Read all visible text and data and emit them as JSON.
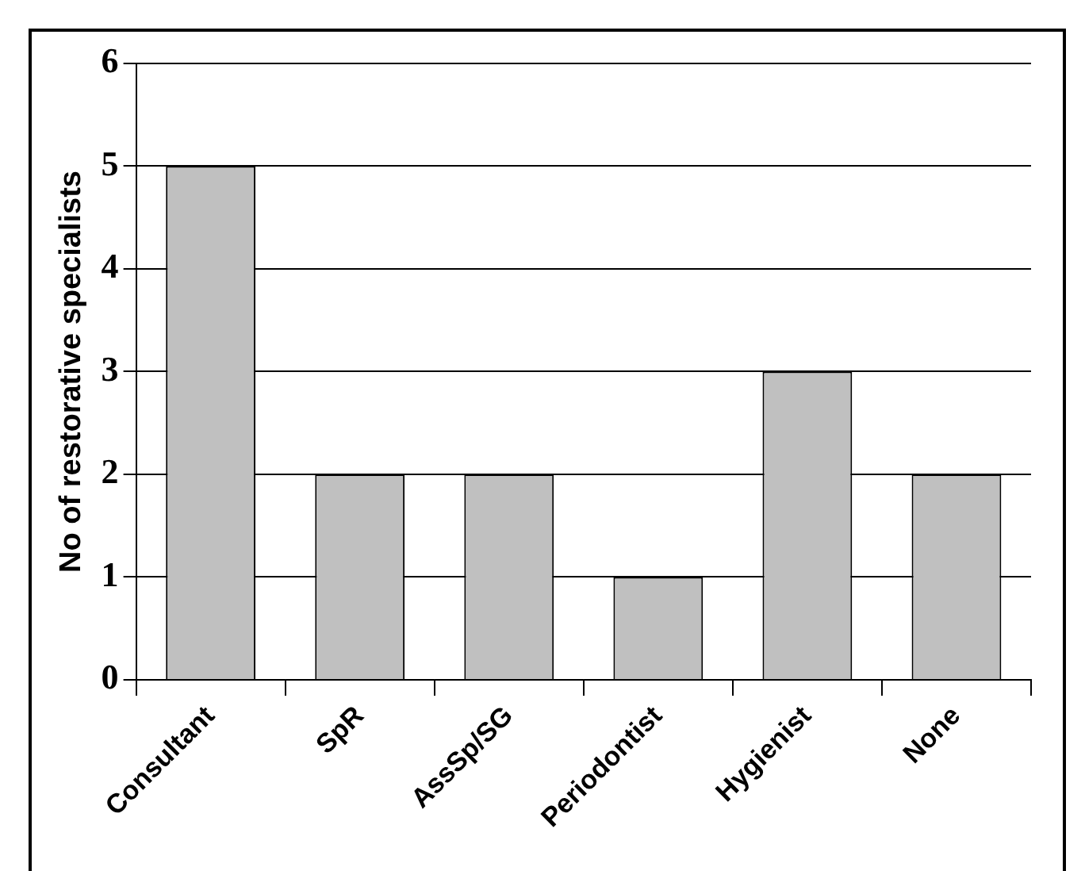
{
  "chart_data": {
    "type": "bar",
    "ylabel": "No of restorative specialists",
    "categories": [
      "Consultant",
      "SpR",
      "AssSp/SG",
      "Periodontist",
      "Hygienist",
      "None"
    ],
    "values": [
      5,
      2,
      2,
      1,
      3,
      2
    ],
    "color": "#c0c0c0",
    "ylim": [
      0,
      6
    ],
    "yticks": [
      0,
      1,
      2,
      3,
      4,
      5,
      6
    ],
    "grid": "y",
    "legend": false
  }
}
